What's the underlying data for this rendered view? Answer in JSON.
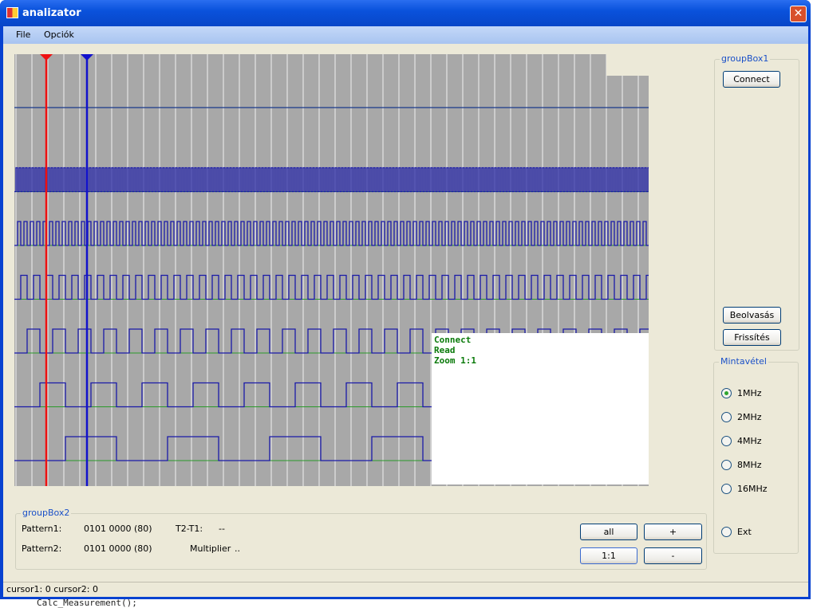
{
  "window": {
    "title": "analizator",
    "close_icon": "close-icon"
  },
  "menu": [
    "File",
    "Opciók"
  ],
  "scope": {
    "colors": {
      "background": "#a8a8a8",
      "grid": "#d8d8d8",
      "signal": "#1a1aa8",
      "low_line": "#2a9a2a",
      "cursor1": "#ee1111",
      "cursor2": "#1111cc"
    },
    "channels": [
      {
        "period_samples": 0
      },
      {
        "period_samples": 1
      },
      {
        "period_samples": 2
      },
      {
        "period_samples": 4
      },
      {
        "period_samples": 8
      },
      {
        "period_samples": 16
      },
      {
        "period_samples": 32
      },
      {
        "period_samples": 64
      }
    ],
    "cursor1": 0,
    "cursor2": 0
  },
  "log": [
    "Connect",
    "Read",
    "Zoom 1:1"
  ],
  "groupbox1": {
    "title": "groupBox1",
    "connect": "Connect",
    "read": "Beolvasás",
    "refresh": "Frissítés"
  },
  "sampling": {
    "title": "Mintavétel",
    "options": [
      "1MHz",
      "2MHz",
      "4MHz",
      "8MHz",
      "16MHz",
      "Ext"
    ],
    "selected": "1MHz"
  },
  "groupbox2": {
    "title": "groupBox2",
    "pattern1_label": "Pattern1:",
    "pattern1_value": "0101 0000 (80)",
    "pattern2_label": "Pattern2:",
    "pattern2_value": "0101 0000 (80)",
    "t2t1_label": "T2-T1:",
    "t2t1_value": "--",
    "multiplier_label": "Multiplier",
    "multiplier_value": "..",
    "all": "all",
    "plus": "+",
    "one_to_one": "1:1",
    "minus": "-"
  },
  "status": "cursor1: 0 cursor2: 0",
  "background_code": "Calc_Measurement();"
}
